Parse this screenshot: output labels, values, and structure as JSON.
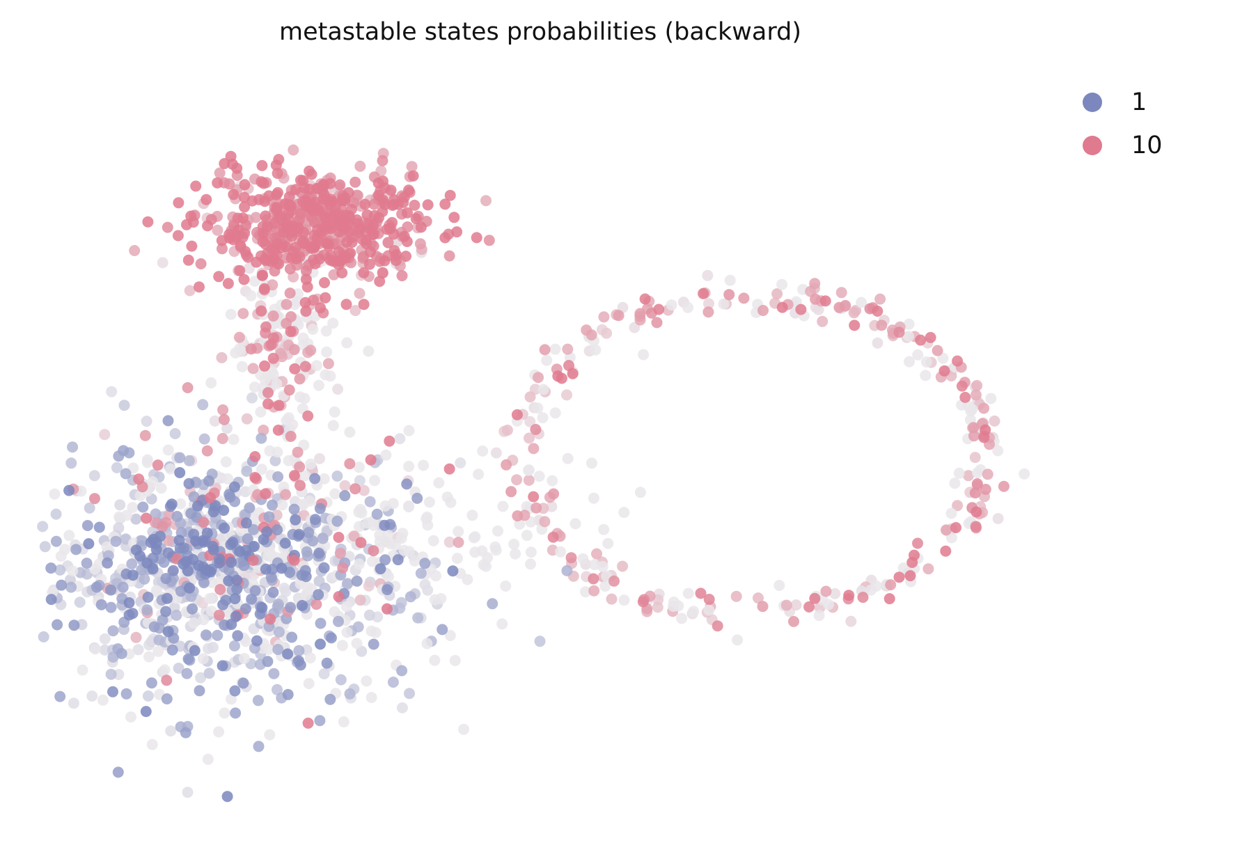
{
  "chart_data": {
    "type": "scatter",
    "title": "metastable states probabilities (backward)",
    "xlabel": "",
    "ylabel": "",
    "axes_visible": false,
    "grid": false,
    "legend_position": "top-right",
    "xlim": [
      0,
      100
    ],
    "ylim": [
      0,
      100
    ],
    "colors": {
      "1": "#7b87bd",
      "10": "#e07a8e",
      "background_point": "#e9e6ea"
    },
    "series": [
      {
        "name": "1",
        "color": "#7b87bd"
      },
      {
        "name": "10",
        "color": "#e07a8e"
      }
    ],
    "points_note_clusters": [
      {
        "name": "10",
        "region": "top",
        "cx": 27,
        "cy": 79,
        "sx": 6,
        "sy": 4,
        "n": 520,
        "strength": 0.95
      },
      {
        "name": "10",
        "region": "top-stem",
        "cx": 23,
        "cy": 62,
        "sx": 2.2,
        "sy": 5,
        "n": 70,
        "strength": 0.55
      },
      {
        "name": "1",
        "region": "bottom-left",
        "cx": 17,
        "cy": 31,
        "sx": 10,
        "sy": 9,
        "n": 620,
        "strength": 0.45
      },
      {
        "name": "10",
        "region": "bottom-left",
        "cx": 21,
        "cy": 38,
        "sx": 8,
        "sy": 9,
        "n": 130,
        "strength": 0.6
      },
      {
        "name": "10",
        "region": "ring-right",
        "cx": 72,
        "cy": 48,
        "rx": 24,
        "ry": 22,
        "n": 230,
        "strength": 0.55
      },
      {
        "name": "1",
        "region": "dense-blue",
        "cx": 15,
        "cy": 34,
        "sx": 5,
        "sy": 2.5,
        "n": 80,
        "strength": 0.95
      }
    ]
  }
}
